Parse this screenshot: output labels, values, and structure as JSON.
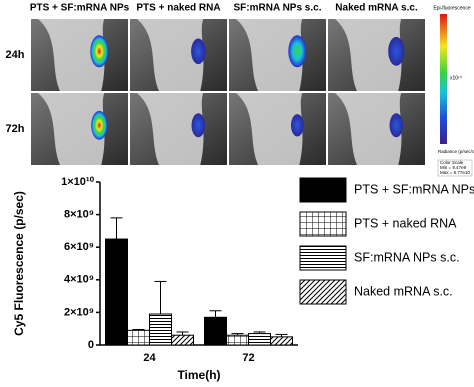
{
  "image_panel": {
    "columns": [
      "PTS + SF:mRNA NPs",
      "PTS + naked RNA",
      "SF:mRNA NPs s.c.",
      "Naked mRNA s.c."
    ],
    "rows": [
      "24h",
      "72h"
    ],
    "colorbar": {
      "title": "Epi-fluorescence",
      "exponent": "x10¹⁰",
      "unit": "Radiance (p/sec/cm²/sr)",
      "scale_title": "Color Scale",
      "min": "Min = 9.47e9",
      "max": "Max = 6.77e10"
    }
  },
  "chart_data": {
    "type": "bar",
    "y_label": "Cy5 Fluorescence (p/sec)",
    "x_label": "Time(h)",
    "categories": [
      "24",
      "72"
    ],
    "series": [
      {
        "name": "PTS + SF:mRNA NPs",
        "color": "#000000",
        "pattern": "solid",
        "values": [
          6500000000,
          1700000000
        ],
        "errors": [
          1300000000,
          400000000
        ]
      },
      {
        "name": "PTS + naked RNA",
        "color": "#000000",
        "pattern": "grid",
        "values": [
          900000000,
          600000000
        ],
        "errors": [
          50000000,
          100000000
        ]
      },
      {
        "name": "SF:mRNA NPs s.c.",
        "color": "#000000",
        "pattern": "hlines",
        "values": [
          1900000000,
          700000000
        ],
        "errors": [
          2000000000,
          100000000
        ]
      },
      {
        "name": "Naked mRNA s.c.",
        "color": "#000000",
        "pattern": "diagonal",
        "values": [
          600000000,
          500000000
        ],
        "errors": [
          200000000,
          150000000
        ]
      }
    ],
    "ylim": [
      0,
      10000000000
    ],
    "yticks": [
      0,
      {
        "value": 2000000000,
        "label": "2×10⁹"
      },
      {
        "value": 4000000000,
        "label": "4×10⁹"
      },
      {
        "value": 6000000000,
        "label": "6×10⁹"
      },
      {
        "value": 8000000000,
        "label": "8×10⁹"
      },
      {
        "value": 10000000000,
        "label": "1×10¹⁰"
      }
    ],
    "grid": false,
    "legend": "right"
  }
}
